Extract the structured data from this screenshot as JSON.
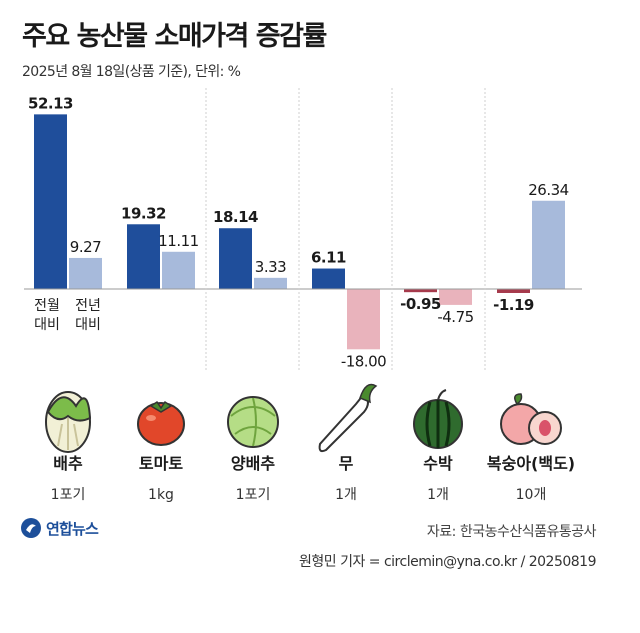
{
  "title": "주요 농산물 소매가격 증감률",
  "subtitle": "2025년 8월 18일(상품 기준), 단위: %",
  "legend": {
    "mom_line1": "전월",
    "mom_line2": "대비",
    "yoy_line1": "전년",
    "yoy_line2": "대비"
  },
  "source": "자료: 한국농수산식품유통공사",
  "credit": "원형민 기자 = circlemin@yna.co.kr / 20250819",
  "logo_text": "연합뉴스",
  "colors": {
    "mom_positive": "#1f4e9b",
    "yoy_positive": "#a7badb",
    "mom_negative": "#a63a4c",
    "yoy_negative": "#e9b3bc",
    "baseline": "#999999"
  },
  "chart_data": {
    "type": "bar",
    "categories": [
      "배추",
      "토마토",
      "양배추",
      "무",
      "수박",
      "복숭아(백도)"
    ],
    "units": [
      "1포기",
      "1kg",
      "1포기",
      "1개",
      "1개",
      "10개"
    ],
    "icons": [
      "napa-cabbage-icon",
      "tomato-icon",
      "cabbage-icon",
      "radish-icon",
      "watermelon-icon",
      "peach-icon"
    ],
    "series": [
      {
        "name": "전월 대비",
        "values": [
          52.13,
          19.32,
          18.14,
          6.11,
          -0.95,
          -1.19
        ]
      },
      {
        "name": "전년 대비",
        "values": [
          9.27,
          11.11,
          3.33,
          -18.0,
          -4.75,
          26.34
        ]
      }
    ]
  }
}
